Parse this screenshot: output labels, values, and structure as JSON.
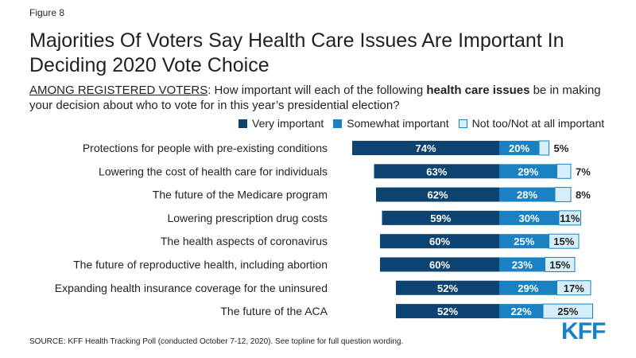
{
  "figure_label": "Figure 8",
  "title": "Majorities Of Voters Say Health Care Issues Are Important In Deciding 2020 Vote Choice",
  "subtitle": {
    "prefix": "AMONG REGISTERED VOTERS",
    "part1": ": How important will each of the following ",
    "bold": "health care issues",
    "part2": " be in making your decision about who to vote for in this year’s presidential election?"
  },
  "source": "SOURCE: KFF Health Tracking Poll (conducted October 7-12, 2020). See topline for full question wording.",
  "logo": "KFF",
  "colors": {
    "very": "#0d4371",
    "somewhat": "#1a82c3",
    "not": "#d6eefa",
    "not_border": "#1a82c3"
  },
  "chart_data": {
    "type": "bar",
    "orientation": "horizontal",
    "stacked": true,
    "legend_position": "top",
    "categories": [
      "Protections for people with pre-existing conditions",
      "Lowering the cost of health care for individuals",
      "The future of the Medicare program",
      "Lowering prescription drug costs",
      "The health aspects of coronavirus",
      "The future of reproductive health, including abortion",
      "Expanding health insurance coverage for the uninsured",
      "The future of the ACA"
    ],
    "series": [
      {
        "name": "Very important",
        "values": [
          74,
          63,
          62,
          59,
          60,
          60,
          52,
          52
        ]
      },
      {
        "name": "Somewhat important",
        "values": [
          20,
          29,
          28,
          30,
          25,
          23,
          29,
          22
        ]
      },
      {
        "name": "Not too/Not at all important",
        "values": [
          5,
          7,
          8,
          11,
          15,
          15,
          17,
          25
        ]
      }
    ],
    "data_labels": [
      [
        "74%",
        "20%",
        "5%"
      ],
      [
        "63%",
        "29%",
        "7%"
      ],
      [
        "62%",
        "28%",
        "8%"
      ],
      [
        "59%",
        "30%",
        "11%"
      ],
      [
        "60%",
        "25%",
        "15%"
      ],
      [
        "60%",
        "23%",
        "15%"
      ],
      [
        "52%",
        "29%",
        "17%"
      ],
      [
        "52%",
        "22%",
        "25%"
      ]
    ]
  }
}
